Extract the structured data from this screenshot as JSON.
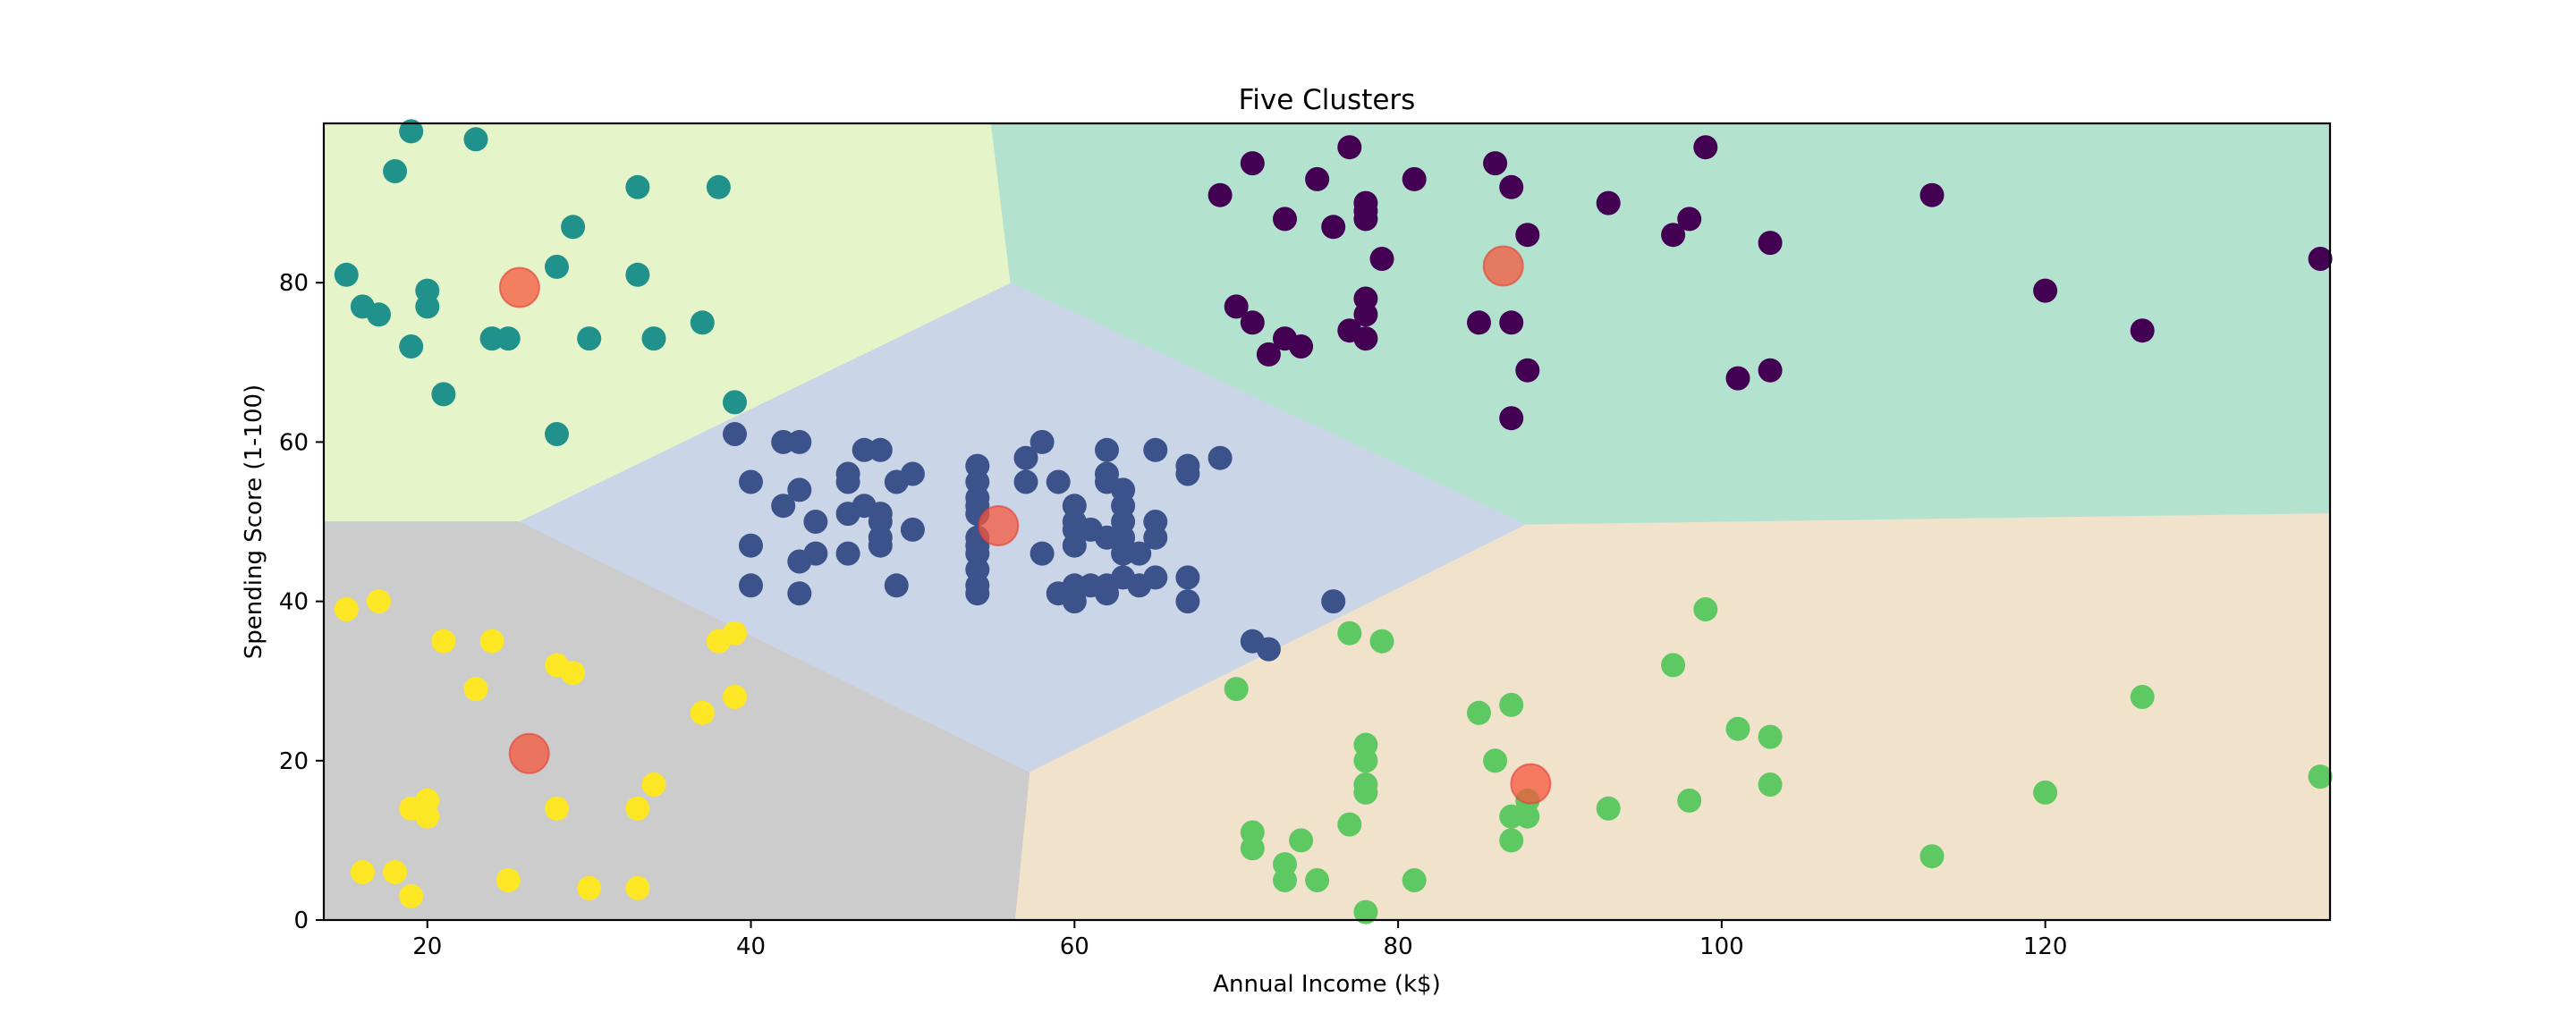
{
  "chart_data": {
    "type": "scatter",
    "title": "Five Clusters",
    "xlabel": "Annual Income (k$)",
    "ylabel": "Spending Score (1-100)",
    "xlim": [
      13.6,
      137.6
    ],
    "ylim": [
      0,
      100
    ],
    "x_ticks": [
      20,
      40,
      60,
      80,
      100,
      120
    ],
    "y_ticks": [
      0,
      20,
      40,
      60,
      80
    ],
    "grid": false,
    "legend": "none",
    "regions": [
      {
        "cluster": 0,
        "color": "#b3e3ce",
        "polygon": [
          [
            54.8,
            100
          ],
          [
            137.6,
            100
          ],
          [
            137.6,
            51
          ],
          [
            87.9,
            49.6
          ],
          [
            56.0,
            80.0
          ]
        ]
      },
      {
        "cluster": 1,
        "color": "#cbd5e8",
        "polygon": [
          [
            25.6,
            50.0
          ],
          [
            56.0,
            80.0
          ],
          [
            87.9,
            49.6
          ],
          [
            57.2,
            18.5
          ]
        ]
      },
      {
        "cluster": 2,
        "color": "#e6f5c9",
        "polygon": [
          [
            13.6,
            100
          ],
          [
            54.8,
            100
          ],
          [
            56.0,
            80.0
          ],
          [
            25.6,
            50.0
          ],
          [
            13.6,
            50.0
          ]
        ]
      },
      {
        "cluster": 3,
        "color": "#f1e2cc",
        "polygon": [
          [
            57.2,
            18.5
          ],
          [
            87.9,
            49.6
          ],
          [
            137.6,
            51
          ],
          [
            137.6,
            0
          ],
          [
            56.3,
            0
          ]
        ]
      },
      {
        "cluster": 4,
        "color": "#cccccc",
        "polygon": [
          [
            13.6,
            50.0
          ],
          [
            25.6,
            50.0
          ],
          [
            57.2,
            18.5
          ],
          [
            56.3,
            0
          ],
          [
            13.6,
            0
          ]
        ]
      }
    ],
    "series": [
      {
        "cluster": 0,
        "color": "#440154",
        "points": [
          [
            69,
            91
          ],
          [
            71,
            95
          ],
          [
            73,
            88
          ],
          [
            75,
            93
          ],
          [
            76,
            87
          ],
          [
            77,
            97
          ],
          [
            78,
            90
          ],
          [
            78,
            89
          ],
          [
            78,
            88
          ],
          [
            79,
            83
          ],
          [
            81,
            93
          ],
          [
            86,
            95
          ],
          [
            87,
            92
          ],
          [
            88,
            86
          ],
          [
            93,
            90
          ],
          [
            97,
            86
          ],
          [
            98,
            88
          ],
          [
            99,
            97
          ],
          [
            103,
            85
          ],
          [
            113,
            91
          ],
          [
            120,
            79
          ],
          [
            126,
            74
          ],
          [
            137,
            83
          ],
          [
            70,
            77
          ],
          [
            71,
            75
          ],
          [
            72,
            71
          ],
          [
            73,
            73
          ],
          [
            74,
            72
          ],
          [
            77,
            74
          ],
          [
            78,
            78
          ],
          [
            78,
            76
          ],
          [
            78,
            73
          ],
          [
            85,
            75
          ],
          [
            87,
            75
          ],
          [
            88,
            69
          ],
          [
            87,
            63
          ],
          [
            101,
            68
          ],
          [
            103,
            69
          ]
        ]
      },
      {
        "cluster": 1,
        "color": "#3b528b",
        "points": [
          [
            39,
            61
          ],
          [
            40,
            55
          ],
          [
            40,
            47
          ],
          [
            40,
            42
          ],
          [
            42,
            60
          ],
          [
            42,
            52
          ],
          [
            43,
            60
          ],
          [
            43,
            54
          ],
          [
            43,
            45
          ],
          [
            43,
            41
          ],
          [
            44,
            50
          ],
          [
            44,
            46
          ],
          [
            46,
            56
          ],
          [
            46,
            55
          ],
          [
            46,
            51
          ],
          [
            46,
            46
          ],
          [
            47,
            59
          ],
          [
            47,
            52
          ],
          [
            48,
            59
          ],
          [
            48,
            51
          ],
          [
            48,
            50
          ],
          [
            48,
            48
          ],
          [
            48,
            47
          ],
          [
            49,
            55
          ],
          [
            49,
            42
          ],
          [
            50,
            56
          ],
          [
            50,
            49
          ],
          [
            54,
            57
          ],
          [
            54,
            55
          ],
          [
            54,
            53
          ],
          [
            54,
            52
          ],
          [
            54,
            51
          ],
          [
            54,
            48
          ],
          [
            54,
            47
          ],
          [
            54,
            46
          ],
          [
            54,
            44
          ],
          [
            54,
            42
          ],
          [
            54,
            41
          ],
          [
            57,
            58
          ],
          [
            57,
            55
          ],
          [
            58,
            60
          ],
          [
            58,
            46
          ],
          [
            59,
            55
          ],
          [
            59,
            41
          ],
          [
            60,
            52
          ],
          [
            60,
            50
          ],
          [
            60,
            49
          ],
          [
            60,
            47
          ],
          [
            60,
            42
          ],
          [
            60,
            40
          ],
          [
            61,
            49
          ],
          [
            61,
            42
          ],
          [
            62,
            59
          ],
          [
            62,
            56
          ],
          [
            62,
            55
          ],
          [
            62,
            48
          ],
          [
            62,
            42
          ],
          [
            62,
            41
          ],
          [
            63,
            54
          ],
          [
            63,
            52
          ],
          [
            63,
            50
          ],
          [
            63,
            48
          ],
          [
            63,
            46
          ],
          [
            63,
            43
          ],
          [
            64,
            46
          ],
          [
            64,
            42
          ],
          [
            65,
            59
          ],
          [
            65,
            50
          ],
          [
            65,
            48
          ],
          [
            65,
            43
          ],
          [
            67,
            57
          ],
          [
            67,
            56
          ],
          [
            67,
            43
          ],
          [
            67,
            40
          ],
          [
            69,
            58
          ],
          [
            71,
            35
          ],
          [
            72,
            34
          ],
          [
            76,
            40
          ]
        ]
      },
      {
        "cluster": 2,
        "color": "#21918c",
        "points": [
          [
            15,
            81
          ],
          [
            16,
            77
          ],
          [
            17,
            76
          ],
          [
            18,
            94
          ],
          [
            19,
            72
          ],
          [
            19,
            99
          ],
          [
            20,
            77
          ],
          [
            20,
            79
          ],
          [
            21,
            66
          ],
          [
            23,
            98
          ],
          [
            24,
            73
          ],
          [
            25,
            73
          ],
          [
            28,
            82
          ],
          [
            28,
            61
          ],
          [
            29,
            87
          ],
          [
            30,
            73
          ],
          [
            33,
            92
          ],
          [
            33,
            81
          ],
          [
            34,
            73
          ],
          [
            37,
            75
          ],
          [
            38,
            92
          ],
          [
            39,
            65
          ]
        ]
      },
      {
        "cluster": 3,
        "color": "#5ec962",
        "points": [
          [
            70,
            29
          ],
          [
            71,
            11
          ],
          [
            71,
            9
          ],
          [
            73,
            7
          ],
          [
            73,
            5
          ],
          [
            74,
            10
          ],
          [
            75,
            5
          ],
          [
            77,
            36
          ],
          [
            77,
            12
          ],
          [
            78,
            22
          ],
          [
            78,
            20
          ],
          [
            78,
            17
          ],
          [
            78,
            16
          ],
          [
            78,
            1
          ],
          [
            79,
            35
          ],
          [
            81,
            5
          ],
          [
            85,
            26
          ],
          [
            86,
            20
          ],
          [
            87,
            27
          ],
          [
            87,
            13
          ],
          [
            87,
            10
          ],
          [
            88,
            13
          ],
          [
            88,
            15
          ],
          [
            93,
            14
          ],
          [
            97,
            32
          ],
          [
            98,
            15
          ],
          [
            99,
            39
          ],
          [
            101,
            24
          ],
          [
            103,
            23
          ],
          [
            103,
            17
          ],
          [
            113,
            8
          ],
          [
            120,
            16
          ],
          [
            126,
            28
          ],
          [
            137,
            18
          ]
        ]
      },
      {
        "cluster": 4,
        "color": "#fde725",
        "points": [
          [
            15,
            39
          ],
          [
            16,
            6
          ],
          [
            17,
            40
          ],
          [
            18,
            6
          ],
          [
            19,
            3
          ],
          [
            19,
            14
          ],
          [
            20,
            15
          ],
          [
            20,
            13
          ],
          [
            21,
            35
          ],
          [
            23,
            29
          ],
          [
            24,
            35
          ],
          [
            25,
            5
          ],
          [
            28,
            14
          ],
          [
            28,
            32
          ],
          [
            29,
            31
          ],
          [
            30,
            4
          ],
          [
            33,
            4
          ],
          [
            33,
            14
          ],
          [
            34,
            17
          ],
          [
            37,
            26
          ],
          [
            38,
            35
          ],
          [
            39,
            36
          ],
          [
            39,
            28
          ]
        ]
      }
    ],
    "centroids": {
      "color": "#f5573d",
      "points": [
        [
          86.5,
          82.1
        ],
        [
          55.3,
          49.5
        ],
        [
          25.7,
          79.4
        ],
        [
          88.2,
          17.1
        ],
        [
          26.3,
          20.9
        ]
      ]
    }
  }
}
